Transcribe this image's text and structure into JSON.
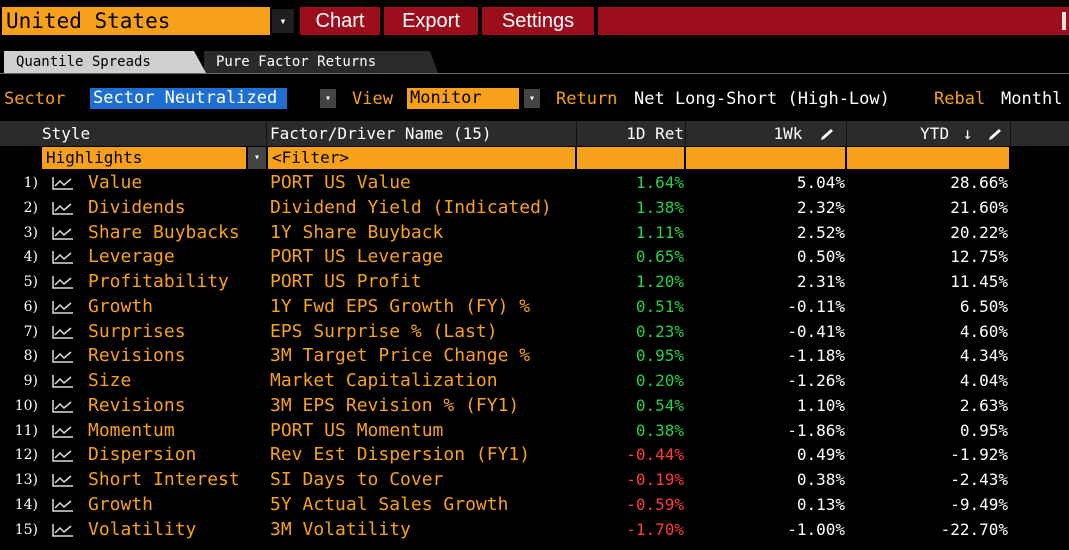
{
  "toolbar": {
    "country": "United States",
    "chart_label": "Chart",
    "export_label": "Export",
    "settings_label": "Settings"
  },
  "tabs": [
    {
      "label": "Quantile Spreads",
      "active": true
    },
    {
      "label": "Pure Factor Returns",
      "active": false
    }
  ],
  "filters": {
    "sector_label": "Sector",
    "sector_value": "Sector Neutralized",
    "view_label": "View",
    "view_value": "Monitor",
    "return_label": "Return",
    "return_value": "Net Long-Short (High-Low)",
    "rebal_label": "Rebal",
    "rebal_value": "Monthl"
  },
  "table": {
    "headers": {
      "style": "Style",
      "name": "Factor/Driver Name (15)",
      "ret1d": "1D Ret",
      "ret1wk": "1Wk",
      "ytd": "YTD"
    },
    "highlights_value": "Highlights",
    "filter_placeholder": "<Filter>",
    "rows": [
      {
        "num": "1)",
        "style": "Value",
        "name": "PORT US Value",
        "ret1d": "1.64%",
        "ret1wk": "5.04%",
        "ytd": "28.66%"
      },
      {
        "num": "2)",
        "style": "Dividends",
        "name": "Dividend Yield (Indicated)",
        "ret1d": "1.38%",
        "ret1wk": "2.32%",
        "ytd": "21.60%"
      },
      {
        "num": "3)",
        "style": "Share Buybacks",
        "name": "1Y Share Buyback",
        "ret1d": "1.11%",
        "ret1wk": "2.52%",
        "ytd": "20.22%"
      },
      {
        "num": "4)",
        "style": "Leverage",
        "name": "PORT US Leverage",
        "ret1d": "0.65%",
        "ret1wk": "0.50%",
        "ytd": "12.75%"
      },
      {
        "num": "5)",
        "style": "Profitability",
        "name": "PORT US Profit",
        "ret1d": "1.20%",
        "ret1wk": "2.31%",
        "ytd": "11.45%"
      },
      {
        "num": "6)",
        "style": "Growth",
        "name": "1Y Fwd EPS Growth (FY) %",
        "ret1d": "0.51%",
        "ret1wk": "-0.11%",
        "ytd": "6.50%"
      },
      {
        "num": "7)",
        "style": "Surprises",
        "name": "EPS Surprise % (Last)",
        "ret1d": "0.23%",
        "ret1wk": "-0.41%",
        "ytd": "4.60%"
      },
      {
        "num": "8)",
        "style": "Revisions",
        "name": "3M Target Price Change %",
        "ret1d": "0.95%",
        "ret1wk": "-1.18%",
        "ytd": "4.34%"
      },
      {
        "num": "9)",
        "style": "Size",
        "name": "Market Capitalization",
        "ret1d": "0.20%",
        "ret1wk": "-1.26%",
        "ytd": "4.04%"
      },
      {
        "num": "10)",
        "style": "Revisions",
        "name": "3M EPS Revision % (FY1)",
        "ret1d": "0.54%",
        "ret1wk": "1.10%",
        "ytd": "2.63%"
      },
      {
        "num": "11)",
        "style": "Momentum",
        "name": "PORT US Momentum",
        "ret1d": "0.38%",
        "ret1wk": "-1.86%",
        "ytd": "0.95%"
      },
      {
        "num": "12)",
        "style": "Dispersion",
        "name": "Rev Est Dispersion (FY1)",
        "ret1d": "-0.44%",
        "ret1wk": "0.49%",
        "ytd": "-1.92%"
      },
      {
        "num": "13)",
        "style": "Short Interest",
        "name": "SI Days to Cover",
        "ret1d": "-0.19%",
        "ret1wk": "0.38%",
        "ytd": "-2.43%"
      },
      {
        "num": "14)",
        "style": "Growth",
        "name": "5Y Actual Sales Growth",
        "ret1d": "-0.59%",
        "ret1wk": "0.13%",
        "ytd": "-9.49%"
      },
      {
        "num": "15)",
        "style": "Volatility",
        "name": "3M Volatility",
        "ret1d": "-1.70%",
        "ret1wk": "-1.00%",
        "ytd": "-22.70%"
      }
    ]
  },
  "colors": {
    "accent_orange": "#f7a11a",
    "toolbar_red": "#9c0e1b",
    "positive_green": "#27d04a",
    "negative_red": "#ff3b3b",
    "selected_blue": "#1f6fd0"
  },
  "icons": {
    "row_chart": "line-chart-icon",
    "dropdown": "chevron-down-icon",
    "edit": "pencil-icon",
    "sort": "sort-down-arrow-icon"
  }
}
